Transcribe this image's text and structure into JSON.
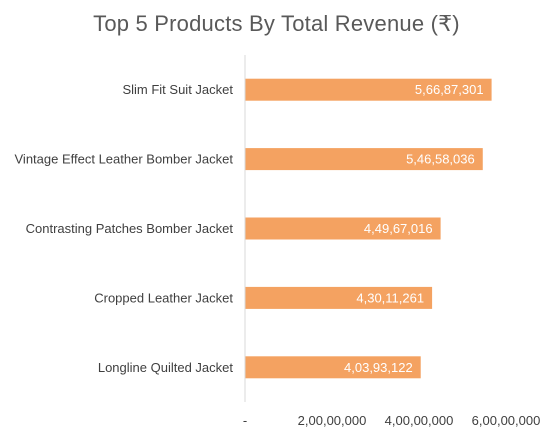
{
  "chart_data": {
    "type": "bar",
    "orientation": "horizontal",
    "title": "Top 5 Products By Total Revenue (₹)",
    "categories": [
      "Slim Fit Suit Jacket",
      "Vintage Effect Leather Bomber Jacket",
      "Contrasting Patches Bomber Jacket",
      "Cropped Leather Jacket",
      "Longline Quilted Jacket"
    ],
    "values": [
      56687301,
      54658036,
      44967016,
      43011261,
      40393122
    ],
    "data_labels": [
      "5,66,87,301",
      "5,46,58,036",
      "4,49,67,016",
      "4,30,11,261",
      "4,03,93,122"
    ],
    "xlim": [
      0,
      60000000
    ],
    "x_ticks": [
      0,
      20000000,
      40000000,
      60000000
    ],
    "x_tick_labels": [
      "-",
      "2,00,00,000",
      "4,00,00,000",
      "6,00,00,000"
    ],
    "bar_color": "#F4A261",
    "grid": false,
    "legend": "none"
  }
}
